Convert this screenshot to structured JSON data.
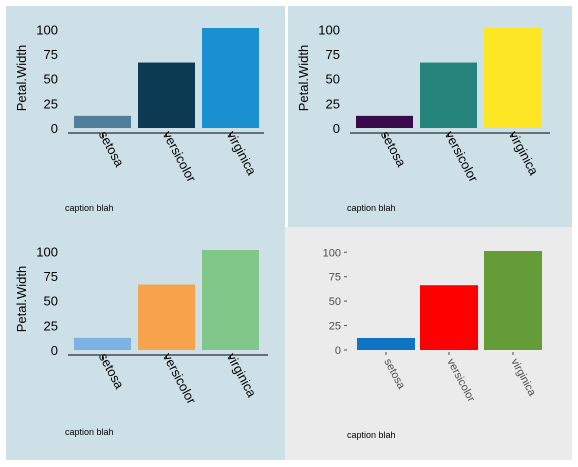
{
  "chart_data": [
    {
      "type": "bar",
      "ylabel": "Petal.Width",
      "categories": [
        "setosa",
        "versicolor",
        "virginica"
      ],
      "values": [
        12.3,
        66.3,
        101.3
      ],
      "ylim": [
        0,
        101.3
      ],
      "yticks": [
        0,
        25,
        50,
        75,
        100
      ],
      "bar_colors": [
        "#4e7e99",
        "#0c3a52",
        "#1a90d0"
      ],
      "background": "#cde0e7",
      "caption": "caption blah",
      "theme": "styled",
      "grid": false
    },
    {
      "type": "bar",
      "ylabel": "Petal.Width",
      "categories": [
        "setosa",
        "versicolor",
        "virginica"
      ],
      "values": [
        12.3,
        66.3,
        101.3
      ],
      "ylim": [
        0,
        101.3
      ],
      "yticks": [
        0,
        25,
        50,
        75,
        100
      ],
      "bar_colors": [
        "#3a0a4c",
        "#25857d",
        "#fde725"
      ],
      "background": "#cde0e7",
      "caption": "caption blah",
      "theme": "styled",
      "grid": false
    },
    {
      "type": "bar",
      "ylabel": "Petal.Width",
      "categories": [
        "setosa",
        "versicolor",
        "virginica"
      ],
      "values": [
        12.3,
        66.3,
        101.3
      ],
      "ylim": [
        0,
        101.3
      ],
      "yticks": [
        0,
        25,
        50,
        75,
        100
      ],
      "bar_colors": [
        "#7eb2e4",
        "#f6a34b",
        "#80c789"
      ],
      "background": "#cde0e7",
      "caption": "caption blah",
      "theme": "styled",
      "grid": false
    },
    {
      "type": "bar",
      "ylabel": "",
      "categories": [
        "setosa",
        "versicolor",
        "virginica"
      ],
      "values": [
        12.3,
        66.3,
        101.3
      ],
      "ylim": [
        0,
        101.3
      ],
      "yticks": [
        0,
        25,
        50,
        75,
        100
      ],
      "bar_colors": [
        "#0f74c4",
        "#ff0000",
        "#649c37"
      ],
      "background": "#ebebeb",
      "caption": "caption blah",
      "theme": "plain",
      "grid": false
    }
  ]
}
